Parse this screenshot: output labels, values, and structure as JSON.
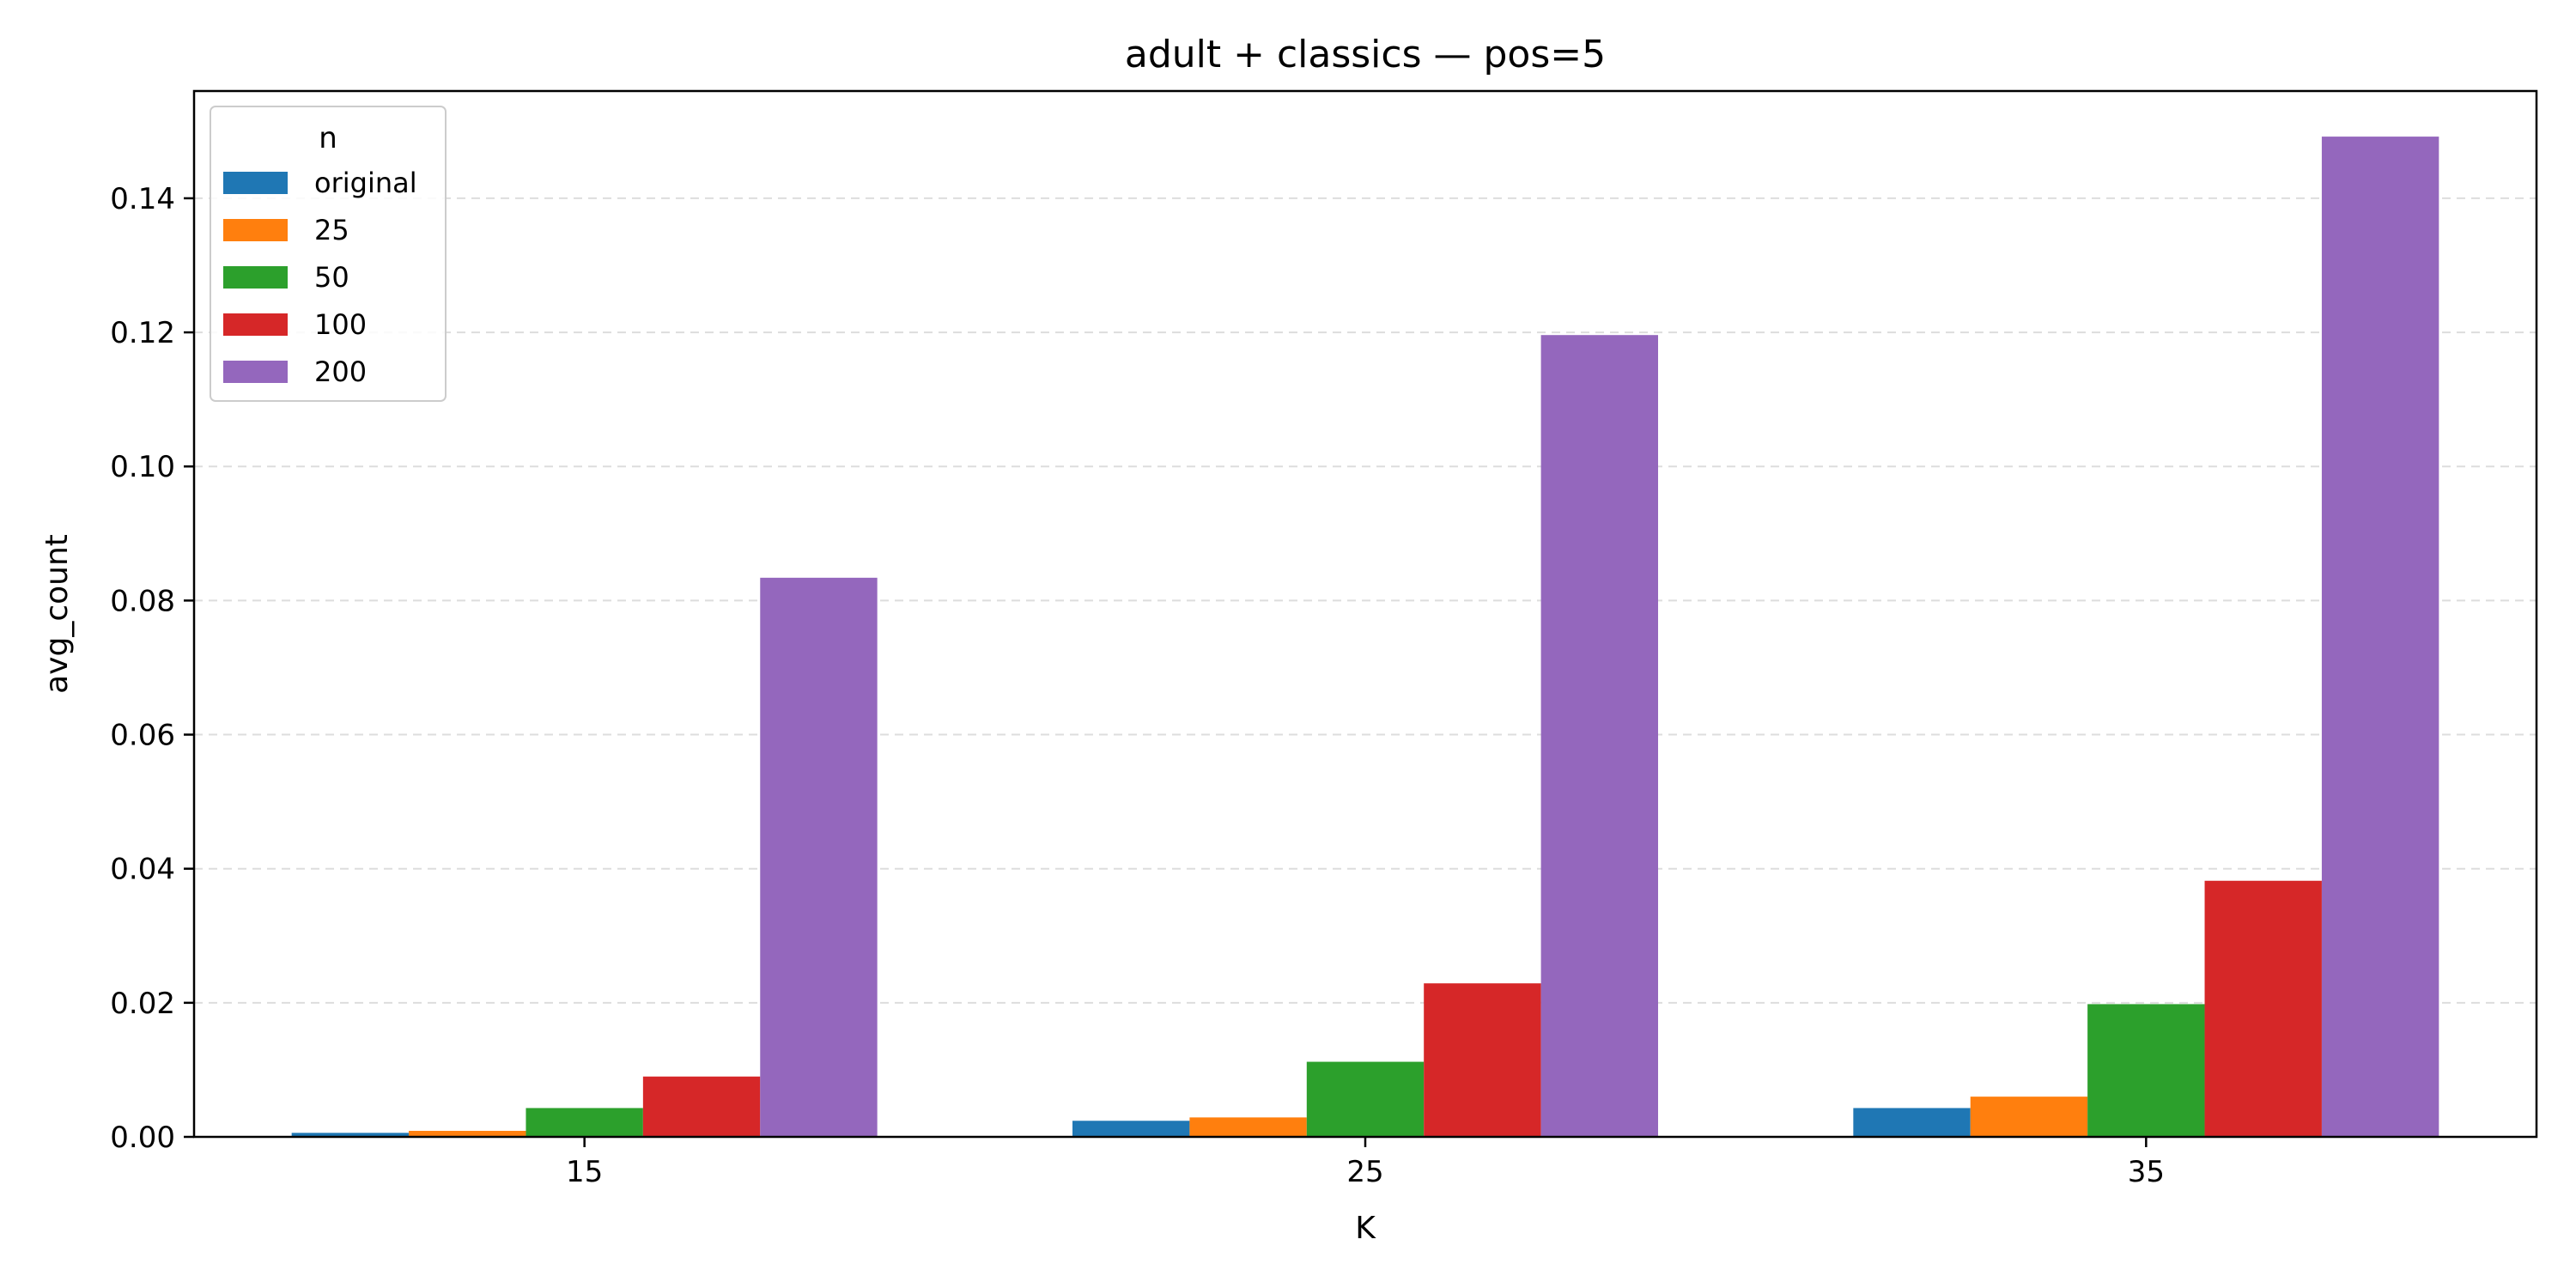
{
  "chart_data": {
    "type": "bar",
    "title": "adult + classics — pos=5",
    "xlabel": "K",
    "ylabel": "avg_count",
    "categories": [
      "15",
      "25",
      "35"
    ],
    "ylim": [
      0,
      0.156
    ],
    "yticks": [
      "0.00",
      "0.02",
      "0.04",
      "0.06",
      "0.08",
      "0.10",
      "0.12",
      "0.14"
    ],
    "grid": "y-dashed",
    "legend": {
      "title": "n",
      "placement": "top-left"
    },
    "series": [
      {
        "name": "original",
        "color": "#1f77b4",
        "values": [
          0.0006,
          0.0024,
          0.0043
        ]
      },
      {
        "name": "25",
        "color": "#ff7f0e",
        "values": [
          0.0009,
          0.0029,
          0.006
        ]
      },
      {
        "name": "50",
        "color": "#2ca02c",
        "values": [
          0.0043,
          0.0112,
          0.0198
        ]
      },
      {
        "name": "100",
        "color": "#d62728",
        "values": [
          0.009,
          0.0229,
          0.0382
        ]
      },
      {
        "name": "200",
        "color": "#9467bd",
        "values": [
          0.0834,
          0.1196,
          0.1492
        ]
      }
    ]
  }
}
